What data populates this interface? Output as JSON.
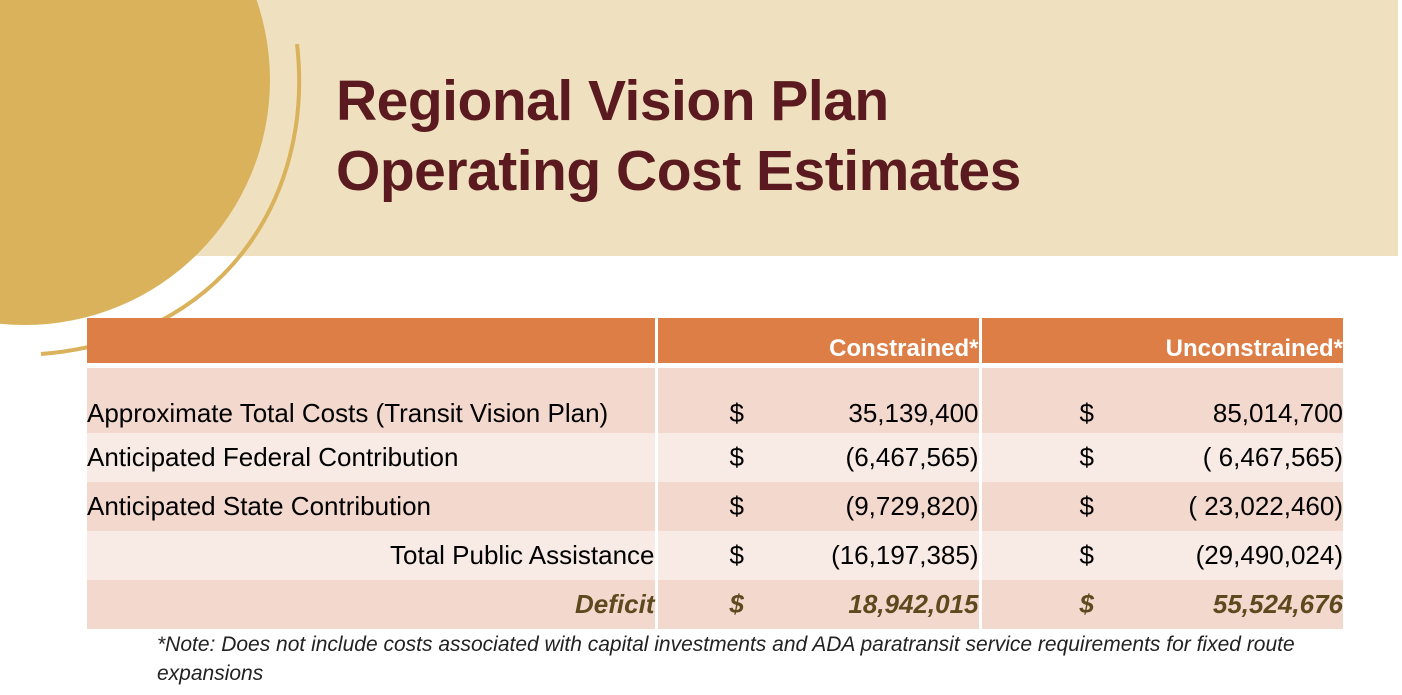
{
  "slide": {
    "title_line1": "Regional Vision Plan",
    "title_line2": "Operating Cost Estimates"
  },
  "table": {
    "headers": [
      "",
      "Constrained*",
      "Unconstrained*"
    ],
    "rows": [
      {
        "label": "Approximate Total Costs (Transit Vision Plan)",
        "cur1": "$",
        "constrained": "35,139,400",
        "cur2": "$",
        "unconstrained": "85,014,700"
      },
      {
        "label": "Anticipated Federal Contribution",
        "cur1": "$",
        "constrained": "(6,467,565)",
        "cur2": "$",
        "unconstrained": "( 6,467,565)"
      },
      {
        "label": "Anticipated State Contribution",
        "cur1": "$",
        "constrained": "(9,729,820)",
        "cur2": "$",
        "unconstrained": "( 23,022,460)"
      },
      {
        "label": "Total Public Assistance",
        "cur1": "$",
        "constrained": "(16,197,385)",
        "cur2": "$",
        "unconstrained": "(29,490,024)"
      },
      {
        "label": "Deficit",
        "cur1": "$",
        "constrained": "18,942,015",
        "cur2": "$",
        "unconstrained": "55,524,676"
      }
    ]
  },
  "note": "*Note: Does not include costs associated with capital investments and ADA paratransit service requirements for fixed route expansions",
  "colors": {
    "title_band": "#efe1bf",
    "title_text": "#5a1a1f",
    "accent_circle": "#d9b25b",
    "header_fill": "#de7e47",
    "row_dark": "#f3d8ce",
    "row_light": "#f8ebe6",
    "deficit_text": "#5c4a1e"
  }
}
